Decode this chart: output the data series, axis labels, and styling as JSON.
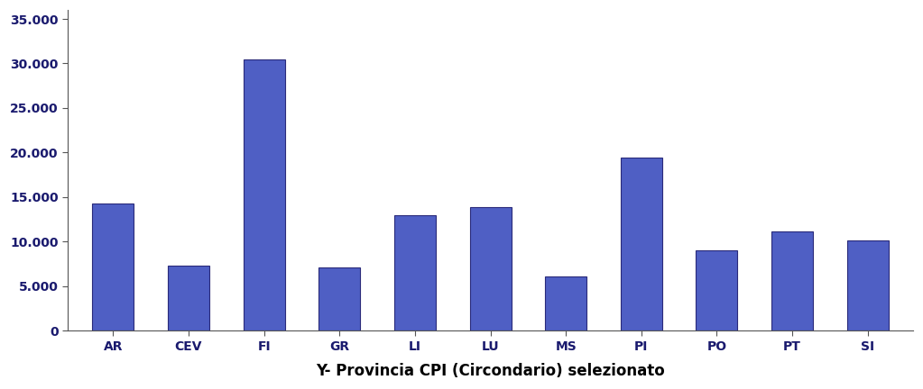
{
  "categories": [
    "AR",
    "CEV",
    "FI",
    "GR",
    "LI",
    "LU",
    "MS",
    "PI",
    "PO",
    "PT",
    "SI"
  ],
  "values": [
    14300,
    7300,
    30500,
    7100,
    13000,
    13900,
    6100,
    19400,
    9000,
    11200,
    10100
  ],
  "bar_color": "#4f5fc4",
  "bar_edge_color": "#2a2a7a",
  "xlabel": "Y- Provincia CPI (Circondario) selezionato",
  "ylim": [
    0,
    36000
  ],
  "yticks": [
    0,
    5000,
    10000,
    15000,
    20000,
    25000,
    30000,
    35000
  ],
  "background_color": "#ffffff",
  "xlabel_fontsize": 12,
  "tick_fontsize": 10,
  "tick_label_color": "#1a1a6e",
  "xlabel_color": "#000000",
  "bar_width": 0.55,
  "spine_color": "#555555"
}
